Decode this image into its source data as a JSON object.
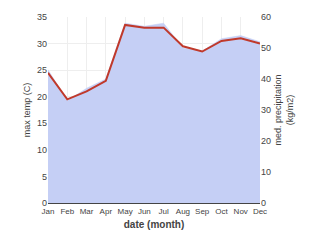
{
  "chart_data": {
    "type": "line",
    "xlabel": "date (month)",
    "ylabel": "max temp (C)",
    "y2label": "med. precipitation\n(kg/m2)",
    "categories": [
      "Jan",
      "Feb",
      "Mar",
      "Apr",
      "May",
      "Jun",
      "Jul",
      "Aug",
      "Sep",
      "Oct",
      "Nov",
      "Dec"
    ],
    "series": [
      {
        "type": "area",
        "axis": "y2",
        "color": "#c5cff5",
        "values": [
          43,
          33,
          37,
          40,
          58,
          57,
          58,
          50,
          49,
          53,
          54,
          52
        ]
      },
      {
        "type": "line",
        "color": "#c0392b",
        "values": [
          24.5,
          19.5,
          21.0,
          23.0,
          33.5,
          33.0,
          33.0,
          29.5,
          28.5,
          30.5,
          31.0,
          30.0
        ]
      }
    ],
    "ylim": [
      0,
      35
    ],
    "yticks": [
      0,
      5,
      10,
      15,
      20,
      25,
      30,
      35
    ],
    "y2lim": [
      0,
      60
    ],
    "y2ticks": [
      0,
      10,
      20,
      30,
      40,
      50,
      60
    ],
    "grid": true
  }
}
